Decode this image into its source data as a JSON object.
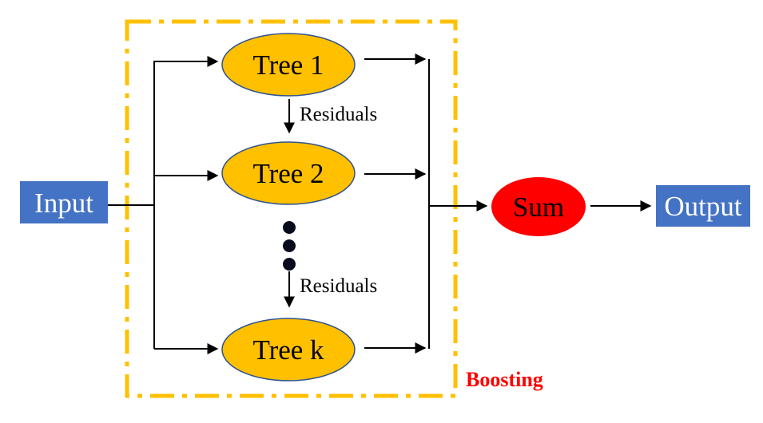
{
  "colors": {
    "background": "#ffffff",
    "box_fill": "#4472c4",
    "box_text": "#ffffff",
    "tree_fill": "#ffc000",
    "tree_stroke": "#2f528f",
    "sum_fill": "#ff0000",
    "boosting_border": "#ffc000",
    "boosting_label": "#ff0000",
    "line": "#000000",
    "dot": "#0a0a1e",
    "text": "#000000"
  },
  "input": {
    "label": "Input"
  },
  "output": {
    "label": "Output"
  },
  "trees": [
    {
      "label": "Tree 1"
    },
    {
      "label": "Tree 2"
    },
    {
      "label": "Tree k"
    }
  ],
  "residuals": [
    {
      "label": "Residuals"
    },
    {
      "label": "Residuals"
    }
  ],
  "sum": {
    "label": "Sum"
  },
  "boosting": {
    "label": "Boosting"
  },
  "ellipsis_dots": 3
}
